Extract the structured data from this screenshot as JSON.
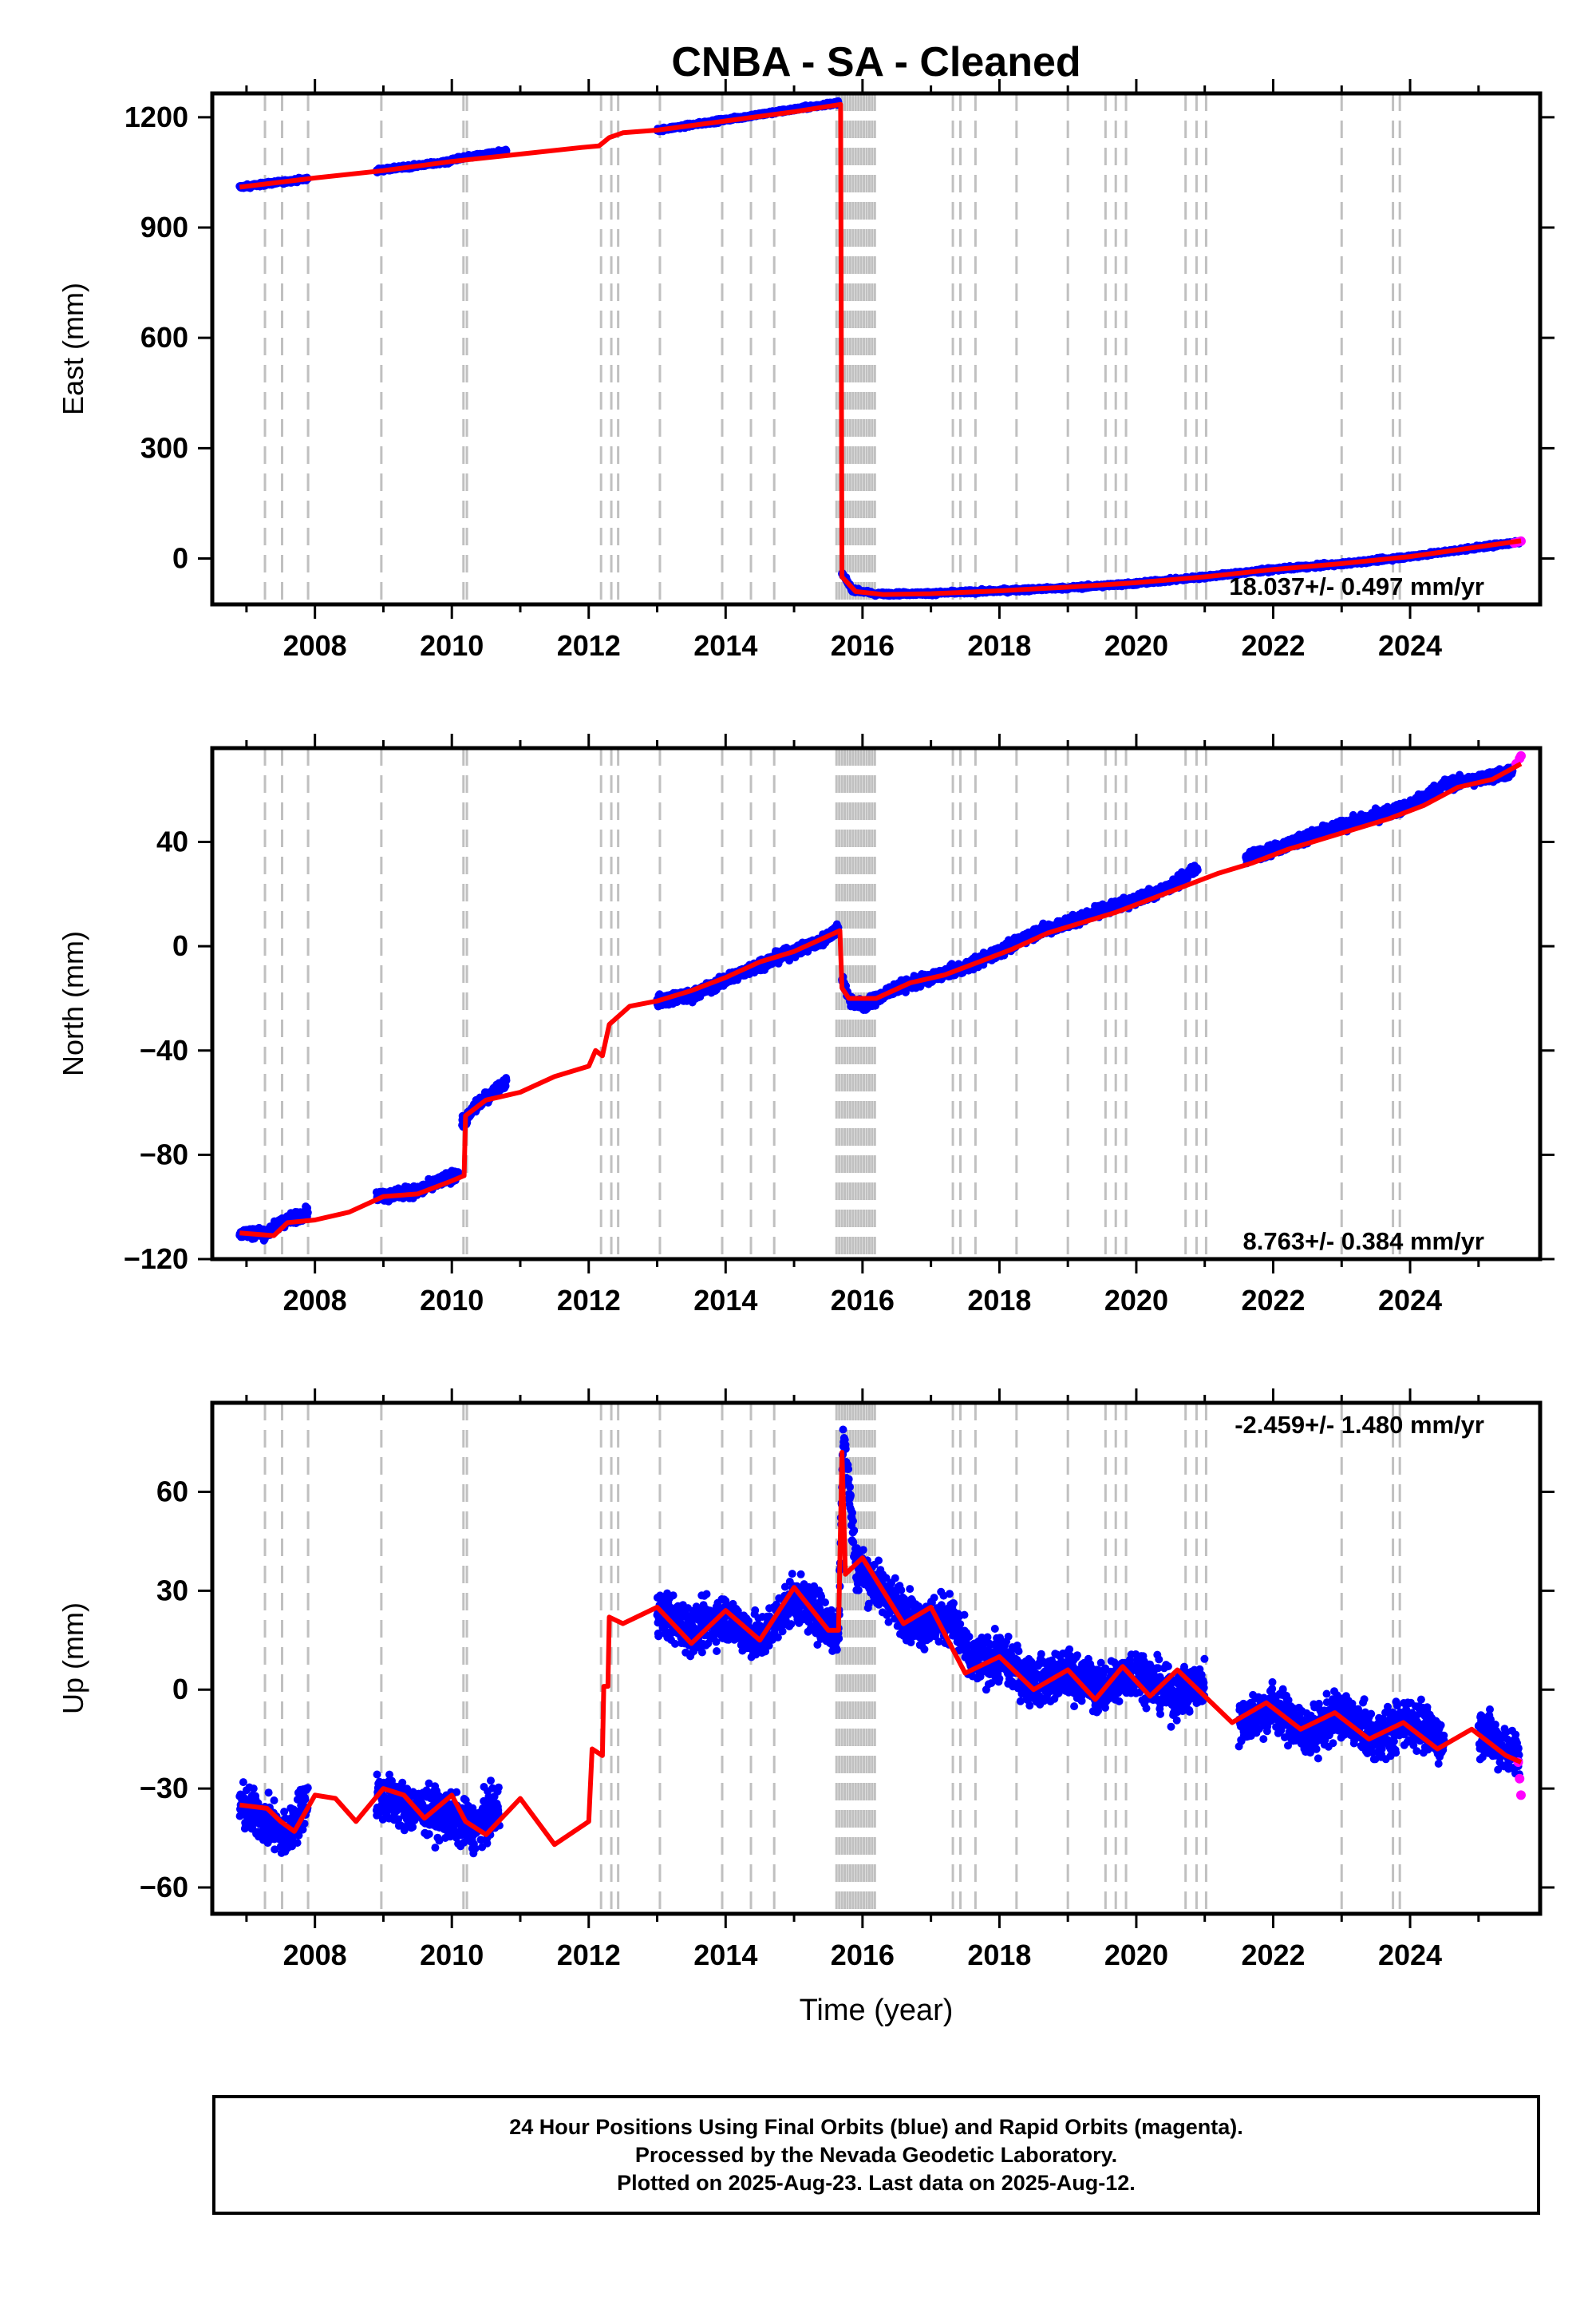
{
  "title": "CNBA  - SA - Cleaned",
  "xlabel": "Time (year)",
  "colors": {
    "final_orbits": "#0000ff",
    "rapid_orbits": "#ff00ff",
    "model": "#ff0000",
    "event_lines": "#c0c0c0"
  },
  "chart_data": [
    {
      "type": "scatter",
      "panel": "east",
      "ylabel": "East (mm)",
      "rate_label": "18.037+/- 0.497 mm/yr",
      "xlim": [
        2006.5,
        2025.9
      ],
      "ylim": [
        -125,
        1265
      ],
      "yticks": [
        0,
        300,
        600,
        900,
        1200
      ],
      "xticks": [
        2008,
        2010,
        2012,
        2014,
        2016,
        2018,
        2020,
        2022,
        2024
      ],
      "obs_segments": [
        [
          [
            2006.9,
            1010
          ],
          [
            2007.9,
            1033
          ]
        ],
        [
          [
            2008.9,
            1055
          ],
          [
            2010.0,
            1080
          ]
        ],
        [
          [
            2010.0,
            1085
          ],
          [
            2010.8,
            1108
          ]
        ],
        [
          [
            2013.0,
            1165
          ],
          [
            2015.65,
            1240
          ]
        ],
        [
          [
            2015.7,
            -40
          ],
          [
            2015.85,
            -85
          ],
          [
            2016.2,
            -97
          ],
          [
            2017.0,
            -95
          ],
          [
            2018.0,
            -88
          ],
          [
            2019.0,
            -80
          ],
          [
            2020.0,
            -68
          ],
          [
            2021.0,
            -50
          ],
          [
            2022.0,
            -30
          ],
          [
            2023.0,
            -15
          ],
          [
            2024.0,
            5
          ],
          [
            2025.6,
            45
          ]
        ]
      ],
      "rapid_points": [
        [
          2025.52,
          42
        ],
        [
          2025.58,
          45
        ],
        [
          2025.62,
          47
        ]
      ],
      "model": [
        [
          2006.9,
          1010
        ],
        [
          2008.0,
          1035
        ],
        [
          2009.0,
          1055
        ],
        [
          2010.0,
          1080
        ],
        [
          2011.0,
          1100
        ],
        [
          2011.9,
          1118
        ],
        [
          2012.15,
          1122
        ],
        [
          2012.3,
          1145
        ],
        [
          2012.5,
          1158
        ],
        [
          2013.0,
          1165
        ],
        [
          2014.0,
          1190
        ],
        [
          2015.0,
          1215
        ],
        [
          2015.68,
          1235
        ],
        [
          2015.7,
          -50
        ],
        [
          2015.9,
          -90
        ],
        [
          2016.3,
          -98
        ],
        [
          2017.0,
          -96
        ],
        [
          2018.0,
          -88
        ],
        [
          2019.0,
          -78
        ],
        [
          2020.0,
          -66
        ],
        [
          2021.0,
          -50
        ],
        [
          2022.0,
          -30
        ],
        [
          2023.0,
          -14
        ],
        [
          2024.0,
          5
        ],
        [
          2025.62,
          48
        ]
      ]
    },
    {
      "type": "scatter",
      "panel": "north",
      "ylabel": "North (mm)",
      "rate_label": "8.763+/- 0.384 mm/yr",
      "xlim": [
        2006.5,
        2025.9
      ],
      "ylim": [
        -120,
        76
      ],
      "yticks": [
        -120,
        -80,
        -40,
        0,
        40
      ],
      "xticks": [
        2008,
        2010,
        2012,
        2014,
        2016,
        2018,
        2020,
        2022,
        2024
      ],
      "obs_segments": [
        [
          [
            2006.9,
            -110
          ],
          [
            2007.3,
            -110
          ],
          [
            2007.5,
            -106
          ],
          [
            2007.9,
            -102
          ]
        ],
        [
          [
            2008.9,
            -96
          ],
          [
            2009.5,
            -94
          ],
          [
            2010.1,
            -87
          ]
        ],
        [
          [
            2010.15,
            -68
          ],
          [
            2010.4,
            -60
          ],
          [
            2010.8,
            -52
          ]
        ],
        [
          [
            2013.0,
            -21
          ],
          [
            2013.5,
            -19
          ],
          [
            2014.0,
            -13
          ],
          [
            2014.5,
            -7
          ],
          [
            2015.0,
            -2
          ],
          [
            2015.4,
            2
          ],
          [
            2015.65,
            7
          ]
        ],
        [
          [
            2015.7,
            -12
          ],
          [
            2015.8,
            -20
          ],
          [
            2016.0,
            -23
          ],
          [
            2016.5,
            -16
          ],
          [
            2017.0,
            -12
          ],
          [
            2017.5,
            -8
          ],
          [
            2018.0,
            -2
          ],
          [
            2018.5,
            5
          ],
          [
            2019.0,
            9
          ],
          [
            2019.5,
            14
          ],
          [
            2020.0,
            18
          ],
          [
            2020.5,
            23
          ],
          [
            2020.9,
            30
          ]
        ],
        [
          [
            2021.6,
            34
          ],
          [
            2022.0,
            37
          ],
          [
            2022.5,
            42
          ],
          [
            2023.0,
            46
          ],
          [
            2023.5,
            50
          ],
          [
            2024.0,
            54
          ],
          [
            2024.5,
            62
          ],
          [
            2025.0,
            64
          ],
          [
            2025.5,
            67
          ]
        ]
      ],
      "rapid_points": [
        [
          2025.55,
          70
        ],
        [
          2025.6,
          72
        ],
        [
          2025.62,
          73
        ]
      ],
      "model": [
        [
          2006.9,
          -110
        ],
        [
          2007.4,
          -111
        ],
        [
          2007.6,
          -106
        ],
        [
          2008.0,
          -105
        ],
        [
          2008.5,
          -102
        ],
        [
          2009.0,
          -96
        ],
        [
          2009.5,
          -95
        ],
        [
          2010.0,
          -90
        ],
        [
          2010.18,
          -88
        ],
        [
          2010.2,
          -65
        ],
        [
          2010.5,
          -59
        ],
        [
          2011.0,
          -56
        ],
        [
          2011.5,
          -50
        ],
        [
          2012.0,
          -46
        ],
        [
          2012.1,
          -40
        ],
        [
          2012.2,
          -42
        ],
        [
          2012.3,
          -30
        ],
        [
          2012.6,
          -23
        ],
        [
          2013.0,
          -21
        ],
        [
          2013.5,
          -17
        ],
        [
          2014.0,
          -12
        ],
        [
          2014.5,
          -6
        ],
        [
          2015.0,
          -2
        ],
        [
          2015.67,
          6
        ],
        [
          2015.7,
          -16
        ],
        [
          2015.8,
          -20
        ],
        [
          2016.2,
          -20
        ],
        [
          2016.7,
          -14
        ],
        [
          2017.2,
          -11
        ],
        [
          2017.7,
          -6
        ],
        [
          2018.2,
          -1
        ],
        [
          2018.7,
          5
        ],
        [
          2019.2,
          9
        ],
        [
          2019.7,
          13
        ],
        [
          2020.2,
          18
        ],
        [
          2020.7,
          23
        ],
        [
          2021.2,
          28
        ],
        [
          2021.7,
          32
        ],
        [
          2022.2,
          37
        ],
        [
          2022.7,
          41
        ],
        [
          2023.2,
          45
        ],
        [
          2023.7,
          49
        ],
        [
          2024.2,
          54
        ],
        [
          2024.7,
          61
        ],
        [
          2025.2,
          64
        ],
        [
          2025.62,
          70
        ]
      ]
    },
    {
      "type": "scatter",
      "panel": "up",
      "ylabel": "Up (mm)",
      "rate_label": "-2.459+/- 1.480 mm/yr",
      "xlim": [
        2006.5,
        2025.9
      ],
      "ylim": [
        -68,
        87
      ],
      "yticks": [
        -60,
        -30,
        0,
        30,
        60
      ],
      "xticks": [
        2008,
        2010,
        2012,
        2014,
        2016,
        2018,
        2020,
        2022,
        2024
      ],
      "obs_segments": [
        [
          [
            2006.9,
            -35
          ],
          [
            2007.3,
            -40
          ],
          [
            2007.6,
            -45
          ],
          [
            2007.9,
            -32
          ]
        ],
        [
          [
            2008.9,
            -32
          ],
          [
            2009.4,
            -36
          ],
          [
            2009.9,
            -38
          ],
          [
            2010.3,
            -42
          ],
          [
            2010.7,
            -36
          ]
        ],
        [
          [
            2013.0,
            24
          ],
          [
            2013.5,
            18
          ],
          [
            2014.0,
            22
          ],
          [
            2014.5,
            15
          ],
          [
            2015.0,
            28
          ],
          [
            2015.5,
            20
          ],
          [
            2015.65,
            16
          ],
          [
            2015.72,
            80
          ],
          [
            2015.9,
            38
          ],
          [
            2016.3,
            30
          ],
          [
            2016.8,
            20
          ],
          [
            2017.3,
            22
          ],
          [
            2017.6,
            8
          ],
          [
            2018.0,
            10
          ],
          [
            2018.5,
            2
          ],
          [
            2019.0,
            5
          ],
          [
            2019.5,
            0
          ],
          [
            2020.0,
            6
          ],
          [
            2020.5,
            -2
          ],
          [
            2021.0,
            2
          ]
        ],
        [
          [
            2021.5,
            -10
          ],
          [
            2022.0,
            -5
          ],
          [
            2022.5,
            -14
          ],
          [
            2023.0,
            -7
          ],
          [
            2023.5,
            -15
          ],
          [
            2024.0,
            -9
          ],
          [
            2024.5,
            -16
          ]
        ],
        [
          [
            2025.0,
            -12
          ],
          [
            2025.3,
            -17
          ],
          [
            2025.6,
            -20
          ]
        ]
      ],
      "rapid_points": [
        [
          2025.58,
          -22
        ],
        [
          2025.6,
          -27
        ],
        [
          2025.62,
          -32
        ]
      ],
      "model": [
        [
          2006.9,
          -35
        ],
        [
          2007.3,
          -36
        ],
        [
          2007.5,
          -40
        ],
        [
          2007.7,
          -43
        ],
        [
          2008.0,
          -32
        ],
        [
          2008.3,
          -33
        ],
        [
          2008.6,
          -40
        ],
        [
          2009.0,
          -30
        ],
        [
          2009.3,
          -32
        ],
        [
          2009.6,
          -39
        ],
        [
          2010.0,
          -32
        ],
        [
          2010.2,
          -40
        ],
        [
          2010.5,
          -44
        ],
        [
          2011.0,
          -33
        ],
        [
          2011.5,
          -47
        ],
        [
          2012.0,
          -40
        ],
        [
          2012.05,
          -18
        ],
        [
          2012.2,
          -20
        ],
        [
          2012.22,
          1
        ],
        [
          2012.28,
          1
        ],
        [
          2012.3,
          22
        ],
        [
          2012.5,
          20
        ],
        [
          2013.0,
          25
        ],
        [
          2013.5,
          14
        ],
        [
          2014.0,
          24
        ],
        [
          2014.5,
          15
        ],
        [
          2015.0,
          31
        ],
        [
          2015.5,
          18
        ],
        [
          2015.65,
          18
        ],
        [
          2015.7,
          72
        ],
        [
          2015.75,
          35
        ],
        [
          2016.0,
          40
        ],
        [
          2016.3,
          30
        ],
        [
          2016.6,
          20
        ],
        [
          2017.0,
          25
        ],
        [
          2017.5,
          5
        ],
        [
          2018.0,
          10
        ],
        [
          2018.5,
          0
        ],
        [
          2019.0,
          6
        ],
        [
          2019.4,
          -3
        ],
        [
          2019.8,
          7
        ],
        [
          2020.2,
          -2
        ],
        [
          2020.6,
          6
        ],
        [
          2021.0,
          -2
        ],
        [
          2021.4,
          -10
        ],
        [
          2021.9,
          -4
        ],
        [
          2022.4,
          -12
        ],
        [
          2022.9,
          -7
        ],
        [
          2023.4,
          -15
        ],
        [
          2023.9,
          -10
        ],
        [
          2024.4,
          -18
        ],
        [
          2024.9,
          -12
        ],
        [
          2025.4,
          -20
        ],
        [
          2025.62,
          -22
        ]
      ]
    }
  ],
  "footer": {
    "line1": "24 Hour Positions Using Final Orbits (blue) and Rapid Orbits (magenta).",
    "line2": "Processed by the Nevada Geodetic Laboratory.",
    "line3": "Plotted on 2025-Aug-23. Last data on 2025-Aug-12."
  }
}
